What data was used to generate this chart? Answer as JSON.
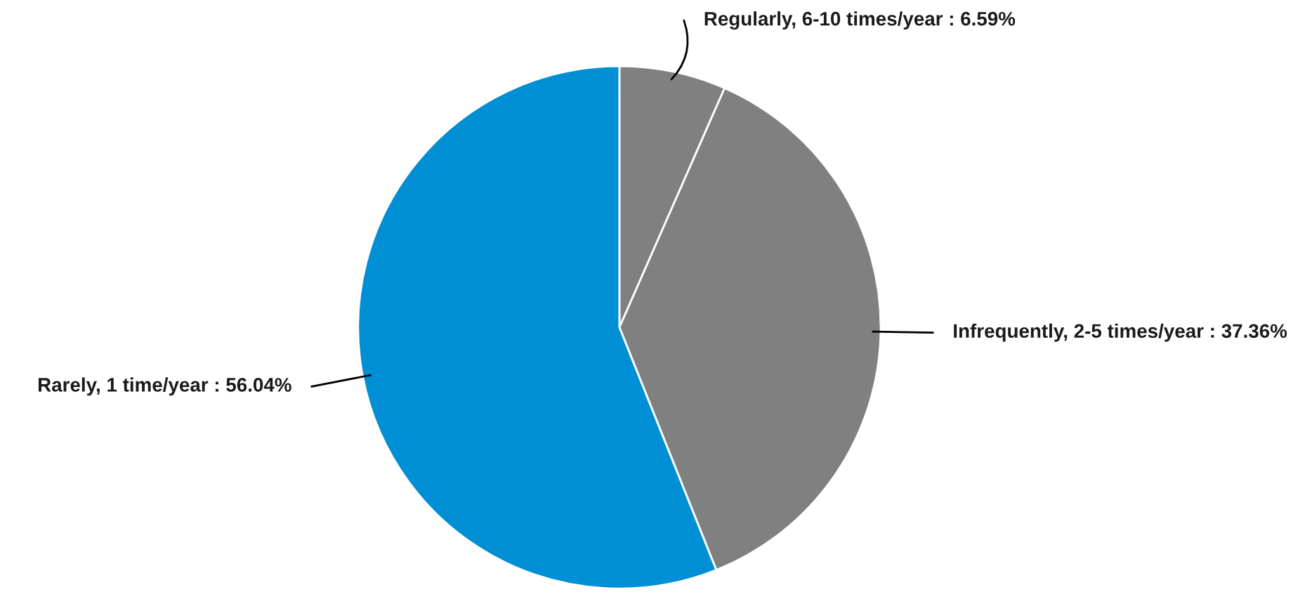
{
  "chart_data": {
    "type": "pie",
    "categories": [
      "Regularly, 6-10 times/year",
      "Infrequently, 2-5 times/year",
      "Rarely, 1 time/year"
    ],
    "values": [
      6.59,
      37.36,
      56.04
    ],
    "colors": [
      "#808080",
      "#808080",
      "#008fd5"
    ],
    "value_labels": [
      "6.59%",
      "37.36%",
      "56.04%"
    ]
  }
}
